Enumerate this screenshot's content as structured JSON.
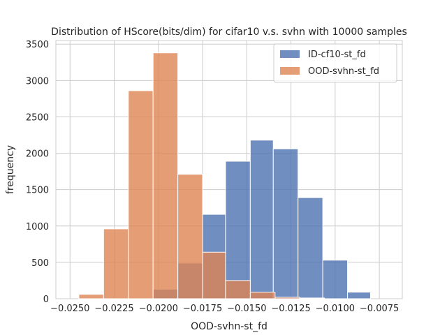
{
  "chart_data": {
    "type": "histogram",
    "title": "Distribution of HScore(bits/dim) for cifar10 v.s. svhn with 10000 samples",
    "xlabel": "OOD-svhn-st_fd",
    "ylabel": "frequency",
    "xlim": [
      -0.0258,
      -0.0062
    ],
    "ylim": [
      0,
      3550
    ],
    "xticks": [
      -0.025,
      -0.0225,
      -0.02,
      -0.0175,
      -0.015,
      -0.0125,
      -0.01,
      -0.0075
    ],
    "xtick_labels": [
      "−0.0250",
      "−0.0225",
      "−0.0200",
      "−0.0175",
      "−0.0150",
      "−0.0125",
      "−0.0100",
      "−0.0075"
    ],
    "yticks": [
      0,
      500,
      1000,
      1500,
      2000,
      2500,
      3000,
      3500
    ],
    "ytick_labels": [
      "0",
      "500",
      "1000",
      "1500",
      "2000",
      "2500",
      "3000",
      "3500"
    ],
    "grid": true,
    "legend_position": "top-right",
    "series": [
      {
        "name": "ID-cf10-st_fd",
        "color": "#4c72b0",
        "bin_edges": [
          -0.0222,
          -0.0203,
          -0.0189,
          -0.0175,
          -0.0162,
          -0.0148,
          -0.0135,
          -0.0121,
          -0.0107,
          -0.0093,
          -0.008
        ],
        "counts": [
          10,
          130,
          490,
          1160,
          1890,
          2180,
          2060,
          1390,
          530,
          90
        ]
      },
      {
        "name": "OOD-svhn-st_fd",
        "color": "#dd8452",
        "bin_edges": [
          -0.0245,
          -0.0231,
          -0.0217,
          -0.0203,
          -0.0189,
          -0.0175,
          -0.0162,
          -0.0148,
          -0.0134,
          -0.012,
          -0.0106
        ],
        "counts": [
          60,
          960,
          2860,
          3380,
          1710,
          640,
          250,
          90,
          20,
          10
        ]
      }
    ]
  }
}
